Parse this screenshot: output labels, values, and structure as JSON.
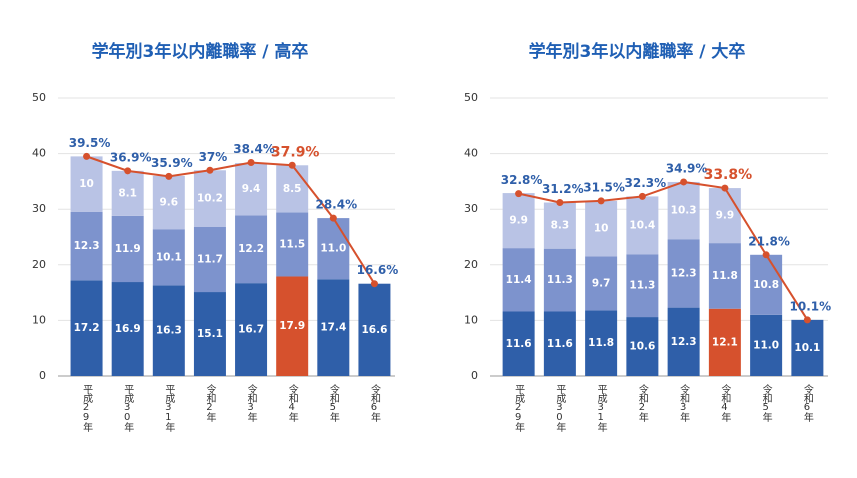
{
  "chart_data": [
    {
      "type": "bar",
      "stacked": true,
      "title": "学年別3年以内離職率 / 高卒",
      "categories": [
        "平成29年",
        "平成30年",
        "平成31年",
        "令和2年",
        "令和3年",
        "令和4年",
        "令和5年",
        "令和6年"
      ],
      "series": [
        {
          "color": "#2f5fa9",
          "bar_colors": [
            null,
            null,
            null,
            null,
            null,
            "#d6512d",
            null,
            null
          ],
          "values": [
            17.2,
            16.9,
            16.3,
            15.1,
            16.7,
            17.9,
            17.4,
            16.6
          ],
          "value_labels": [
            "17.2",
            "16.9",
            "16.3",
            "15.1",
            "16.7",
            "17.9",
            "17.4",
            "16.6"
          ]
        },
        {
          "color": "#7d93cd",
          "values": [
            12.3,
            11.9,
            10.1,
            11.7,
            12.2,
            11.5,
            11.0,
            null
          ],
          "value_labels": [
            "12.3",
            "11.9",
            "10.1",
            "11.7",
            "12.2",
            "11.5",
            "11.0",
            null
          ]
        },
        {
          "color": "#b9c3e5",
          "values": [
            10,
            8.1,
            9.6,
            10.2,
            9.4,
            8.5,
            null,
            null
          ],
          "value_labels": [
            "10",
            "8.1",
            "9.6",
            "10.2",
            "9.4",
            "8.5",
            null,
            null
          ]
        }
      ],
      "line": {
        "type": "line",
        "color": "#d6512d",
        "label_color": "#2f5fa9",
        "highlight": 5,
        "values": [
          39.5,
          36.9,
          35.9,
          37,
          38.4,
          37.9,
          28.4,
          16.6
        ],
        "value_labels": [
          "39.5%",
          "36.9%",
          "35.9%",
          "37%",
          "38.4%",
          "37.9%",
          "28.4%",
          "16.6%"
        ]
      },
      "ylim": [
        0,
        50
      ],
      "yticks": [
        0,
        10,
        20,
        30,
        40,
        50
      ],
      "grid": true
    },
    {
      "type": "bar",
      "stacked": true,
      "title": "学年別3年以内離職率 / 大卒",
      "categories": [
        "平成29年",
        "平成30年",
        "平成31年",
        "令和2年",
        "令和3年",
        "令和4年",
        "令和5年",
        "令和6年"
      ],
      "series": [
        {
          "color": "#2f5fa9",
          "bar_colors": [
            null,
            null,
            null,
            null,
            null,
            "#d6512d",
            null,
            null
          ],
          "values": [
            11.6,
            11.6,
            11.8,
            10.6,
            12.3,
            12.1,
            11.0,
            10.1
          ],
          "value_labels": [
            "11.6",
            "11.6",
            "11.8",
            "10.6",
            "12.3",
            "12.1",
            "11.0",
            "10.1"
          ]
        },
        {
          "color": "#7d93cd",
          "values": [
            11.4,
            11.3,
            9.7,
            11.3,
            12.3,
            11.8,
            10.8,
            null
          ],
          "value_labels": [
            "11.4",
            "11.3",
            "9.7",
            "11.3",
            "12.3",
            "11.8",
            "10.8",
            null
          ]
        },
        {
          "color": "#b9c3e5",
          "values": [
            9.9,
            8.3,
            10,
            10.4,
            10.3,
            9.9,
            null,
            null
          ],
          "value_labels": [
            "9.9",
            "8.3",
            "10",
            "10.4",
            "10.3",
            "9.9",
            null,
            null
          ]
        }
      ],
      "line": {
        "type": "line",
        "color": "#d6512d",
        "label_color": "#2f5fa9",
        "highlight": 5,
        "values": [
          32.8,
          31.2,
          31.5,
          32.3,
          34.9,
          33.8,
          21.8,
          10.1
        ],
        "value_labels": [
          "32.8%",
          "31.2%",
          "31.5%",
          "32.3%",
          "34.9%",
          "33.8%",
          "21.8%",
          "10.1%"
        ]
      },
      "ylim": [
        0,
        50
      ],
      "yticks": [
        0,
        10,
        20,
        30,
        40,
        50
      ],
      "grid": true
    }
  ]
}
